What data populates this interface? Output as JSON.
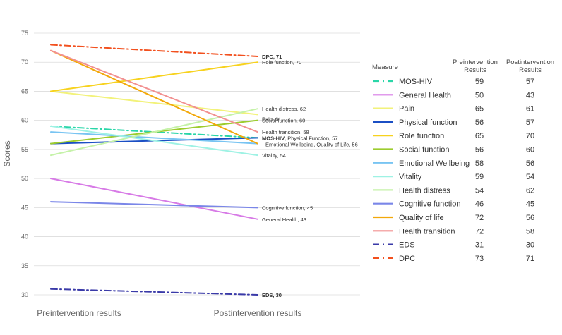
{
  "chart_data": {
    "type": "line",
    "title": "",
    "ylabel": "Scores",
    "xlabel": "",
    "ylim": [
      30,
      75
    ],
    "yticks": [
      30,
      35,
      40,
      45,
      50,
      55,
      60,
      65,
      70,
      75
    ],
    "categories": [
      "Preintervention results",
      "Postintervention results"
    ],
    "grid": true,
    "legend": {
      "placement": "right",
      "headers": [
        "Measure",
        "Preintervention Results",
        "Postintervention Results"
      ]
    },
    "series": [
      {
        "name": "MOS-HIV",
        "values": [
          59,
          57
        ],
        "color": "#2ad6a8",
        "dash": "dashdot",
        "end_label": "",
        "end_label_prefix": "MOS-HIV",
        "end_label_rest": ", Physical Function, 57"
      },
      {
        "name": "General Health",
        "values": [
          50,
          43
        ],
        "color": "#d77ae6",
        "dash": "solid",
        "end_label": "General Health, 43"
      },
      {
        "name": "Pain",
        "values": [
          65,
          61
        ],
        "color": "#f2f27a",
        "dash": "solid",
        "end_label": "Pain, 61"
      },
      {
        "name": "Physical function",
        "values": [
          56,
          57
        ],
        "color": "#1b4fc4",
        "dash": "solid",
        "end_label": ""
      },
      {
        "name": "Role function",
        "values": [
          65,
          70
        ],
        "color": "#f7d21e",
        "dash": "solid",
        "end_label": "Role function, 70"
      },
      {
        "name": "Social function",
        "values": [
          56,
          60
        ],
        "color": "#9ccc2e",
        "dash": "solid",
        "end_label": "Social function, 60"
      },
      {
        "name": "Emotional Wellbeing",
        "values": [
          58,
          56
        ],
        "color": "#78c4f2",
        "dash": "solid",
        "end_label": "Emotional Wellbeing, Quality of Life, 56"
      },
      {
        "name": "Vitality",
        "values": [
          59,
          54
        ],
        "color": "#9ef2e4",
        "dash": "solid",
        "end_label": "Vitality, 54"
      },
      {
        "name": "Health distress",
        "values": [
          54,
          62
        ],
        "color": "#c5f2a8",
        "dash": "solid",
        "end_label": "Health distress, 62"
      },
      {
        "name": "Cognitive function",
        "values": [
          46,
          45
        ],
        "color": "#7a86e8",
        "dash": "solid",
        "end_label": "Cognitive function, 45"
      },
      {
        "name": "Quality of life",
        "values": [
          72,
          56
        ],
        "color": "#f2a80a",
        "dash": "solid",
        "end_label": ""
      },
      {
        "name": "Health transition",
        "values": [
          72,
          58
        ],
        "color": "#f29090",
        "dash": "solid",
        "end_label": "Health transition, 58"
      },
      {
        "name": "EDS",
        "values": [
          31,
          30
        ],
        "color": "#3a3aa8",
        "dash": "dashdot",
        "end_label": "EDS, 30",
        "bold_label": true
      },
      {
        "name": "DPC",
        "values": [
          73,
          71
        ],
        "color": "#f2501e",
        "dash": "dashdot",
        "end_label": "DPC, 71",
        "bold_label": true
      }
    ]
  }
}
